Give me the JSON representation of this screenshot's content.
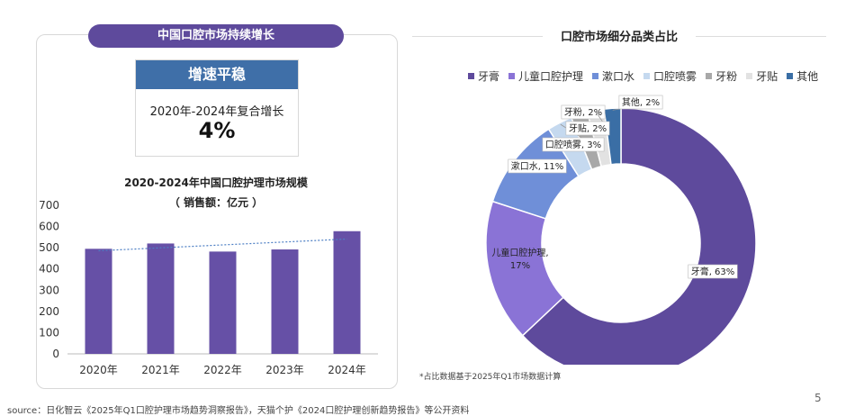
{
  "left_panel": {
    "title": "中国口腔市场持续增长",
    "growth_box": {
      "header": "增速平稳",
      "label": "2020年-2024年复合增长",
      "value": "4%"
    }
  },
  "right_panel": {
    "title": "口腔市场细分品类占比",
    "footnote": "*占比数据基于2025年Q1市场数据计算"
  },
  "source": "source：日化智云《2025年Q1口腔护理市场趋势洞察报告》，天猫个护《2024口腔护理创新趋势报告》等公开资料",
  "page_number": "5",
  "colors": {
    "primary": "#5e4a9c",
    "header_blue": "#3f6fa8",
    "bar": "#6650a6",
    "trend": "#4d7fc4"
  },
  "chart_data": [
    {
      "type": "bar",
      "title": "2020-2024年中国口腔护理市场规模",
      "subtitle": "（ 销售额：亿元 ）",
      "categories": [
        "2020年",
        "2021年",
        "2022年",
        "2023年",
        "2024年"
      ],
      "values": [
        495,
        520,
        482,
        492,
        578
      ],
      "ylim": [
        0,
        700
      ],
      "yticks": [
        "0",
        "100",
        "200",
        "300",
        "400",
        "500",
        "600",
        "700"
      ],
      "trendline": true,
      "xlabel": "",
      "ylabel": ""
    },
    {
      "type": "pie",
      "variant": "donut",
      "labels": [
        "牙膏",
        "儿童口腔护理",
        "漱口水",
        "口腔喷雾",
        "牙粉",
        "牙贴",
        "其他"
      ],
      "values": [
        63,
        17,
        11,
        3,
        2,
        2,
        2
      ],
      "data_labels": [
        "牙膏, 63%",
        "儿童口腔护理,",
        "漱口水, 11%",
        "口腔喷雾, 3%",
        "牙粉, 2%",
        "牙贴, 2%",
        "其他, 2%"
      ],
      "data_labels_extra": [
        "",
        "17%",
        "",
        "",
        "",
        "",
        ""
      ],
      "colors": [
        "#5e4a9c",
        "#8a73d6",
        "#6f8fd8",
        "#c5d9ef",
        "#a8a8a8",
        "#e2e2e2",
        "#3a6ea5"
      ],
      "legend_position": "top"
    }
  ]
}
